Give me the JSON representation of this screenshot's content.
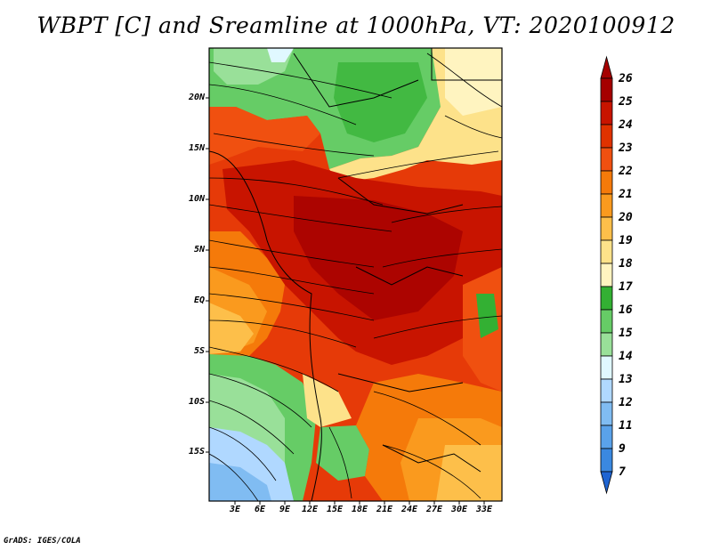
{
  "title": "WBPT [C] and Sreamline at 1000hPa, VT: 2020100912",
  "credit": "GrADS: IGES/COLA",
  "map": {
    "lat_labels": [
      "20N",
      "15N",
      "10N",
      "5N",
      "EQ",
      "5S",
      "10S",
      "15S"
    ],
    "lon_labels": [
      "3E",
      "6E",
      "9E",
      "12E",
      "15E",
      "18E",
      "21E",
      "24E",
      "27E",
      "30E",
      "33E"
    ]
  },
  "colorbar": {
    "labels": [
      "26",
      "25",
      "24",
      "23",
      "22",
      "21",
      "20",
      "19",
      "18",
      "17",
      "16",
      "15",
      "14",
      "13",
      "12",
      "11",
      "9",
      "7"
    ],
    "colors": [
      "#a50000",
      "#c81400",
      "#e03200",
      "#f05010",
      "#f57a0a",
      "#fa9a1e",
      "#fdbf4a",
      "#fde28a",
      "#fff4c0",
      "#33b033",
      "#66cc66",
      "#99e099",
      "#e0f8ff",
      "#b0d8ff",
      "#80bcf2",
      "#5aa2ea",
      "#3a88e0",
      "#1e64d2"
    ]
  }
}
